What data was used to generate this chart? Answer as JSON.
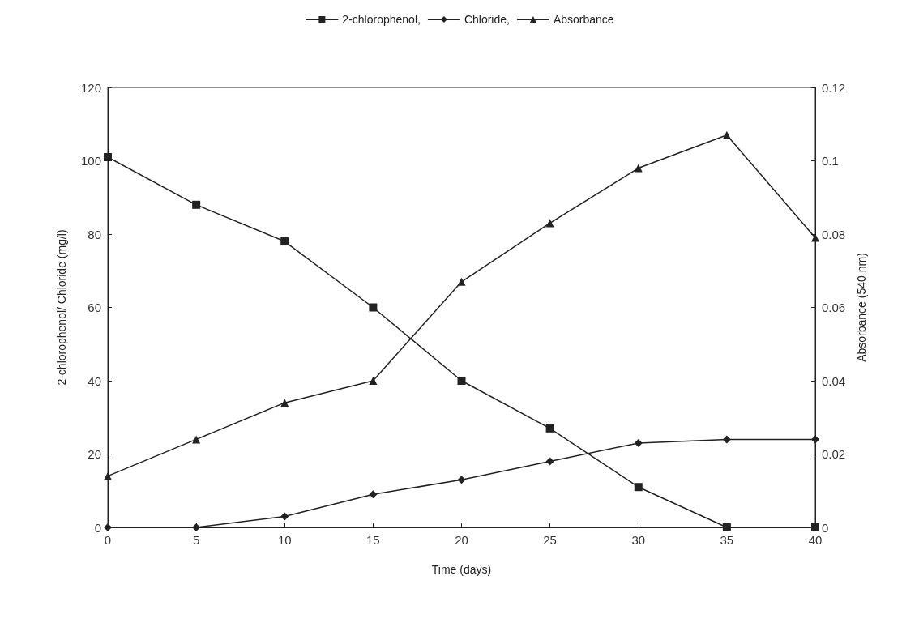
{
  "chart_data": {
    "type": "line",
    "xlabel": "Time (days)",
    "ylabel": "2-chlorophenol/ Chloride (mg/l)",
    "y2label": "Absorbance (540 nm)",
    "x": [
      0,
      5,
      10,
      15,
      20,
      25,
      30,
      35,
      40
    ],
    "series": [
      {
        "name": "2-chlorophenol,",
        "color": "#222222",
        "marker": "square",
        "values": [
          101,
          88,
          78,
          60,
          40,
          27,
          11,
          0,
          0
        ]
      },
      {
        "name": "Chloride,",
        "color": "#222222",
        "marker": "diamond",
        "values": [
          0,
          0,
          3,
          9,
          13,
          18,
          23,
          24,
          24
        ]
      },
      {
        "name": "Absorbance",
        "color": "#222222",
        "marker": "triangle",
        "axis": "y2",
        "values": [
          0.014,
          0.024,
          0.034,
          0.04,
          0.067,
          0.083,
          0.098,
          0.107,
          0.079
        ]
      }
    ],
    "xlim": [
      0,
      40
    ],
    "xticks": [
      0,
      5,
      10,
      15,
      20,
      25,
      30,
      35,
      40
    ],
    "ylim": [
      0,
      120
    ],
    "yticks": [
      0,
      20,
      40,
      60,
      80,
      100,
      120
    ],
    "y2lim": [
      0,
      0.12
    ],
    "y2ticks": [
      0,
      0.02,
      0.04,
      0.06,
      0.08,
      0.1,
      0.12
    ],
    "grid": false,
    "legend": "top",
    "line_style": "solid"
  }
}
